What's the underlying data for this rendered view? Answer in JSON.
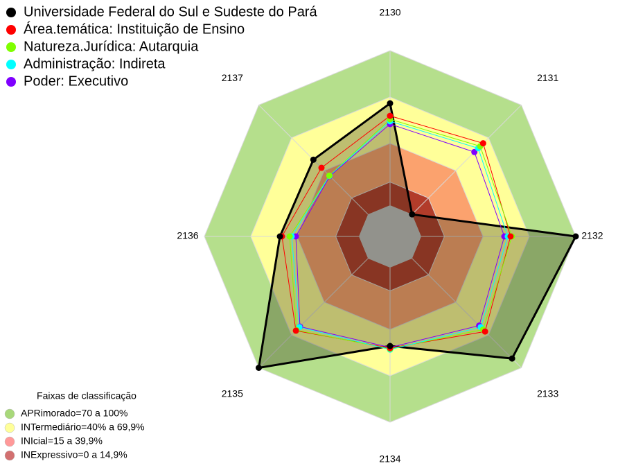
{
  "chart_data": {
    "type": "radar",
    "categories": [
      "2130",
      "2131",
      "2132",
      "2133",
      "2134",
      "2135",
      "2136",
      "2137"
    ],
    "rlim": [
      0,
      100
    ],
    "series": [
      {
        "name": "Universidade Federal do Sul e Sudeste do Pará",
        "color": "#000000",
        "values": [
          65.9,
          0,
          100,
          91.5,
          50.7,
          100,
          51.1,
          50
        ]
      },
      {
        "name": "Área.temática: Instituição de Ensino",
        "color": "#ff0000",
        "values": [
          57.8,
          65,
          57.8,
          66.8,
          52,
          66,
          49.8,
          42.6
        ]
      },
      {
        "name": "Natureza.Jurídica: Autarquia",
        "color": "#7fff00",
        "values": [
          55.6,
          62.3,
          58.7,
          65,
          52.5,
          65.5,
          44.8,
          35.4
        ]
      },
      {
        "name": "Administração: Indireta",
        "color": "#00ffff",
        "values": [
          54.3,
          60.5,
          56,
          62.8,
          53,
          62.8,
          43.5,
          35.2
        ]
      },
      {
        "name": "Poder: Executivo",
        "color": "#7f00ff",
        "values": [
          52.5,
          57,
          53.8,
          61.4,
          51.6,
          62.3,
          40.8,
          35
        ]
      }
    ],
    "bands_title": "Faixas de classificação",
    "bands": [
      {
        "name": "APRimorado=70 a 100%",
        "range": [
          70,
          100
        ],
        "color": "#b5df8c",
        "legend_color": "#a8d87a"
      },
      {
        "name": "INTermediário=40% a 69,9%",
        "range": [
          40,
          70
        ],
        "color": "#ffff99",
        "legend_color": "#ffff99"
      },
      {
        "name": "INIcial=15 a 39,9%",
        "range": [
          15,
          40
        ],
        "color": "#fba26e",
        "legend_color": "#ff9999"
      },
      {
        "name": "INExpressivo=0 a 14,9%",
        "range": [
          0,
          15
        ],
        "color": "#b23c2a",
        "legend_color": "#d27070"
      }
    ],
    "center_color": "#c0c0c0"
  }
}
